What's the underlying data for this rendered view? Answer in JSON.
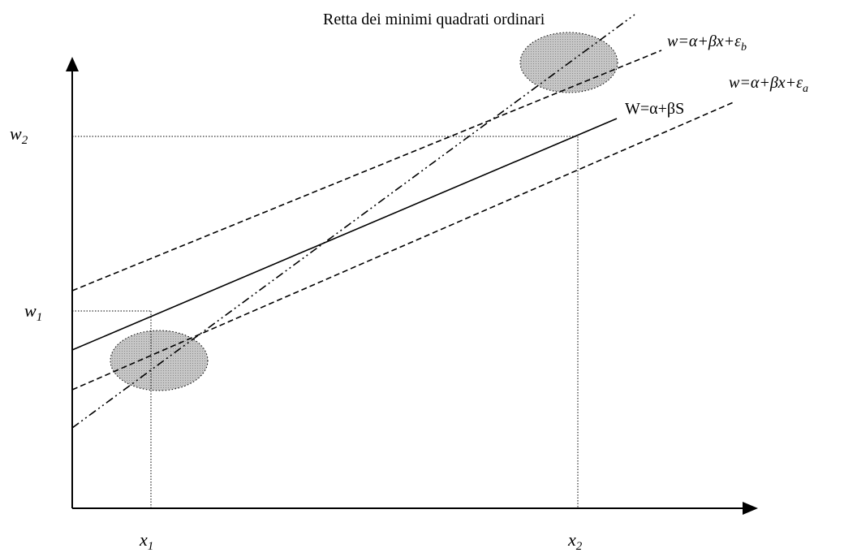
{
  "diagram": {
    "title": "Retta dei minimi quadrati ordinari",
    "lines": {
      "upper_dashed": {
        "prefix": "w=α+βx+ε",
        "sub": "b"
      },
      "lower_dashed": {
        "prefix": "w=α+βx+ε",
        "sub": "a"
      },
      "solid": "W=α+βS"
    },
    "y_labels": {
      "w2": {
        "base": "w",
        "sub": "2"
      },
      "w1": {
        "base": "w",
        "sub": "1"
      }
    },
    "x_labels": {
      "x1": {
        "base": "x",
        "sub": "1"
      },
      "x2": {
        "base": "x",
        "sub": "2"
      }
    },
    "colors": {
      "cluster_fill": "#bdbdbd",
      "line": "#000000"
    }
  }
}
